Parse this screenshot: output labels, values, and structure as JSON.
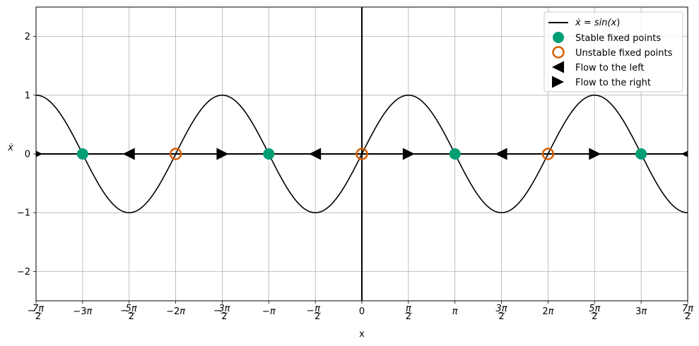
{
  "chart_data": {
    "type": "line",
    "title": "",
    "xlabel": "x",
    "ylabel": "ẋ",
    "xlim_pi": [
      -3.5,
      3.5
    ],
    "ylim": [
      -2.5,
      2.5
    ],
    "grid": true,
    "legend_placement": "top-right",
    "x_ticks": [
      {
        "value_pi": -3.5,
        "label": "−7π/2",
        "frac": true,
        "neg": true,
        "num": "7π",
        "den": "2"
      },
      {
        "value_pi": -3.0,
        "label": "−3π",
        "frac": false
      },
      {
        "value_pi": -2.5,
        "label": "−5π/2",
        "frac": true,
        "neg": true,
        "num": "5π",
        "den": "2"
      },
      {
        "value_pi": -2.0,
        "label": "−2π",
        "frac": false
      },
      {
        "value_pi": -1.5,
        "label": "−3π/2",
        "frac": true,
        "neg": true,
        "num": "3π",
        "den": "2"
      },
      {
        "value_pi": -1.0,
        "label": "−π",
        "frac": false
      },
      {
        "value_pi": -0.5,
        "label": "−π/2",
        "frac": true,
        "neg": true,
        "num": "π",
        "den": "2"
      },
      {
        "value_pi": 0.0,
        "label": "0",
        "frac": false
      },
      {
        "value_pi": 0.5,
        "label": "π/2",
        "frac": true,
        "neg": false,
        "num": "π",
        "den": "2"
      },
      {
        "value_pi": 1.0,
        "label": "π",
        "frac": false
      },
      {
        "value_pi": 1.5,
        "label": "3π/2",
        "frac": true,
        "neg": false,
        "num": "3π",
        "den": "2"
      },
      {
        "value_pi": 2.0,
        "label": "2π",
        "frac": false
      },
      {
        "value_pi": 2.5,
        "label": "5π/2",
        "frac": true,
        "neg": false,
        "num": "5π",
        "den": "2"
      },
      {
        "value_pi": 3.0,
        "label": "3π",
        "frac": false
      },
      {
        "value_pi": 3.5,
        "label": "7π/2",
        "frac": true,
        "neg": false,
        "num": "7π",
        "den": "2"
      }
    ],
    "y_ticks": [
      {
        "value": -2,
        "label": "−2"
      },
      {
        "value": -1,
        "label": "−1"
      },
      {
        "value": 0,
        "label": "0"
      },
      {
        "value": 1,
        "label": "1"
      },
      {
        "value": 2,
        "label": "2"
      }
    ],
    "series": [
      {
        "name": "ẋ = sin(x)",
        "kind": "curve",
        "function": "sin(x)",
        "color": "#000000"
      },
      {
        "name": "Stable fixed points",
        "kind": "points",
        "color": "#009e73",
        "x_pi": [
          -3,
          -1,
          1,
          3
        ],
        "y": [
          0,
          0,
          0,
          0
        ]
      },
      {
        "name": "Unstable fixed points",
        "kind": "points",
        "color": "#d55e00",
        "x_pi": [
          -2,
          0,
          2
        ],
        "y": [
          0,
          0,
          0
        ]
      },
      {
        "name": "Flow to the left",
        "kind": "markers",
        "color": "#000000",
        "x_pi": [
          -2.5,
          -0.5,
          1.5,
          3.5
        ],
        "y": [
          0,
          0,
          0,
          0
        ]
      },
      {
        "name": "Flow to the right",
        "kind": "markers",
        "color": "#000000",
        "x_pi": [
          -3.5,
          -1.5,
          0.5,
          2.5
        ],
        "y": [
          0,
          0,
          0,
          0
        ]
      }
    ],
    "legend": {
      "curve_label_pre": "ẋ = sin(",
      "curve_label_var": "x",
      "curve_label_post": ")",
      "stable_label": "Stable fixed points",
      "unstable_label": "Unstable fixed points",
      "left_label": "Flow to the left",
      "right_label": "Flow to the right"
    }
  }
}
